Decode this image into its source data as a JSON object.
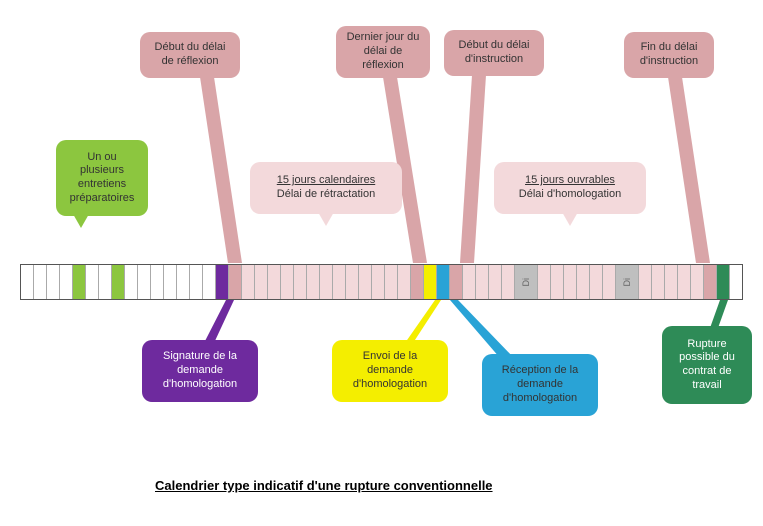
{
  "caption": "Calendrier type indicatif d'une rupture conventionnelle",
  "colors": {
    "green": "#8cc63f",
    "darkgreen": "#2e8b57",
    "pink": "#d9a5a8",
    "lightpink": "#f3d9db",
    "purple": "#6e2a9e",
    "yellow": "#f4ee00",
    "blue": "#29a3d6",
    "grey": "#bfbfbf",
    "white": "#ffffff"
  },
  "bubbles": {
    "b1": "Un ou plusieurs entretiens préparatoires",
    "b2": "Début du délai de réflexion",
    "b3": "Dernier jour du délai de réflexion",
    "b4": "Début du délai d'instruction",
    "b5": "Fin du délai d'instruction",
    "b6_title": "15 jours calendaires",
    "b6_sub": "Délai de rétractation",
    "b7_title": "15 jours ouvrables",
    "b7_sub": "Délai d'homologation",
    "b8": "Signature de la demande d'homologation",
    "b9": "Envoi de la demande d'homologation",
    "b10": "Réception de la demande d'homologation",
    "b11": "Rupture possible du contrat de travail"
  },
  "di": "Di",
  "timeline": {
    "cells": [
      {
        "c": "white"
      },
      {
        "c": "white"
      },
      {
        "c": "white"
      },
      {
        "c": "white"
      },
      {
        "c": "green"
      },
      {
        "c": "white"
      },
      {
        "c": "white"
      },
      {
        "c": "green"
      },
      {
        "c": "white"
      },
      {
        "c": "white"
      },
      {
        "c": "white"
      },
      {
        "c": "white"
      },
      {
        "c": "white"
      },
      {
        "c": "white"
      },
      {
        "c": "white"
      },
      {
        "c": "purple"
      },
      {
        "c": "pink"
      },
      {
        "c": "lightpink"
      },
      {
        "c": "lightpink"
      },
      {
        "c": "lightpink"
      },
      {
        "c": "lightpink"
      },
      {
        "c": "lightpink"
      },
      {
        "c": "lightpink"
      },
      {
        "c": "lightpink"
      },
      {
        "c": "lightpink"
      },
      {
        "c": "lightpink"
      },
      {
        "c": "lightpink"
      },
      {
        "c": "lightpink"
      },
      {
        "c": "lightpink"
      },
      {
        "c": "lightpink"
      },
      {
        "c": "pink"
      },
      {
        "c": "yellow"
      },
      {
        "c": "blue"
      },
      {
        "c": "pink"
      },
      {
        "c": "lightpink"
      },
      {
        "c": "lightpink"
      },
      {
        "c": "lightpink"
      },
      {
        "c": "lightpink"
      },
      {
        "c": "grey",
        "t": "Di"
      },
      {
        "c": "lightpink"
      },
      {
        "c": "lightpink"
      },
      {
        "c": "lightpink"
      },
      {
        "c": "lightpink"
      },
      {
        "c": "lightpink"
      },
      {
        "c": "lightpink"
      },
      {
        "c": "grey",
        "t": "Di"
      },
      {
        "c": "lightpink"
      },
      {
        "c": "lightpink"
      },
      {
        "c": "lightpink"
      },
      {
        "c": "lightpink"
      },
      {
        "c": "lightpink"
      },
      {
        "c": "pink"
      },
      {
        "c": "darkgreen"
      },
      {
        "c": "white"
      }
    ]
  }
}
